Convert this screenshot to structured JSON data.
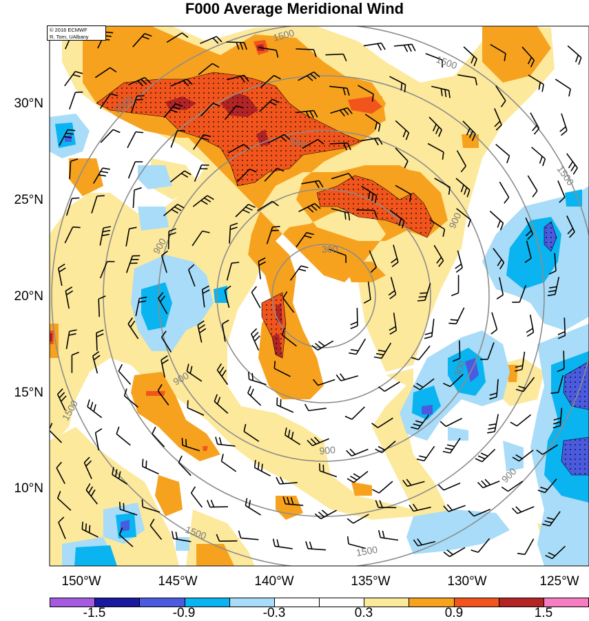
{
  "title": "F000 Average Meridional Wind",
  "credit": {
    "line1": "© 2016 ECMWF",
    "line2": "R. Torn, UAlbany"
  },
  "lat_labels": [
    "30°N",
    "25°N",
    "20°N",
    "15°N",
    "10°N"
  ],
  "lon_labels": [
    "150°W",
    "145°W",
    "140°W",
    "135°W",
    "130°W",
    "125°W"
  ],
  "contour_labels": [
    "1500",
    "1500",
    "1500",
    "1500",
    "1500",
    "1500",
    "1500",
    "900",
    "900",
    "900",
    "900",
    "900",
    "900",
    "300",
    "300"
  ],
  "colorbar": {
    "colors": [
      "#a45be0",
      "#1a1aa0",
      "#4a5be0",
      "#0ab4f0",
      "#a8dcf8",
      "#ffffff",
      "#ffffff",
      "#fde99b",
      "#f7a21f",
      "#f2551c",
      "#b32425",
      "#f67dc0"
    ],
    "labels": [
      "-1.5",
      "-0.9",
      "-0.3",
      "0.3",
      "0.9",
      "1.5"
    ]
  }
}
